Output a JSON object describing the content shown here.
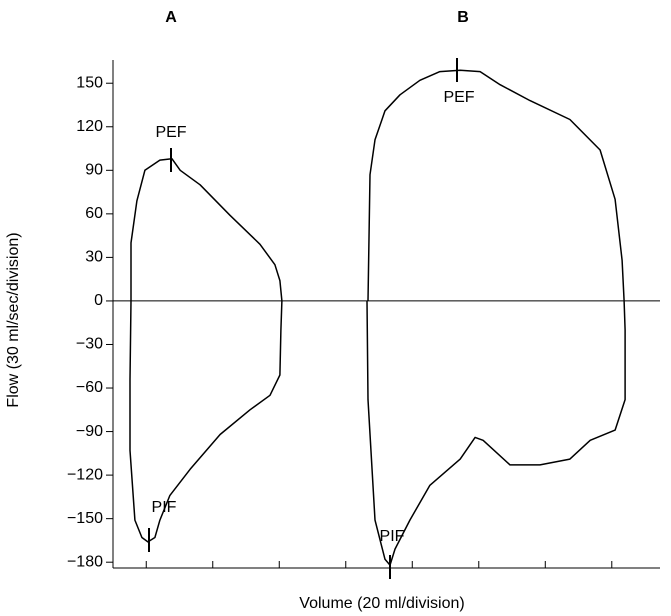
{
  "chart_data": {
    "type": "line",
    "xlabel": "Volume (20 ml/division)",
    "ylabel": "Flow (30 ml/sec/division)",
    "xlim": [
      10,
      174.5
    ],
    "xticks": [
      20,
      40,
      60,
      80,
      100,
      120,
      140,
      160
    ],
    "ylim": [
      -184,
      166
    ],
    "yticks": [
      150,
      120,
      90,
      60,
      30,
      0,
      {
        "value": -30,
        "label": "−30"
      },
      {
        "value": -60,
        "label": "−60"
      },
      {
        "value": -90,
        "label": "−90"
      },
      {
        "value": -120,
        "label": "−120"
      },
      {
        "value": -150,
        "label": "−150"
      },
      {
        "value": -180,
        "label": "−180"
      }
    ],
    "annotations": [
      "PEF",
      "PIF",
      "PEF",
      "PIF"
    ],
    "series": [
      {
        "name": "A",
        "color": "#000000",
        "x": [
          15.4,
          15.4,
          17.2,
          19.6,
          24.1,
          27.7,
          30.2,
          36.2,
          45.2,
          54.2,
          58.7,
          60.2,
          60.8,
          60.5,
          60.2,
          57.2,
          51.2,
          42.2,
          33.2,
          27.1,
          24.1,
          22.6,
          20.5,
          18.7,
          16.6,
          15.1,
          15.1,
          15.4
        ],
        "values": [
          0,
          40,
          69,
          90,
          97,
          98,
          90,
          80,
          59,
          39,
          25,
          14,
          0,
          -20,
          -51,
          -65,
          -75,
          -92,
          -116,
          -134,
          -151,
          -163,
          -166,
          -163,
          -151,
          -103,
          -54,
          0
        ]
      },
      {
        "name": "B",
        "color": "#000000",
        "x": [
          86.7,
          87.3,
          88.8,
          91.8,
          96.3,
          102.3,
          108.3,
          114.4,
          120.4,
          126.4,
          135.4,
          147.4,
          156.5,
          161,
          163.1,
          163.7,
          164,
          164,
          161,
          153.5,
          147.4,
          138.4,
          129.4,
          121.3,
          118.9,
          114.4,
          105.3,
          99.3,
          94.8,
          93.3,
          91.8,
          88.8,
          86.7,
          86.4
        ],
        "values": [
          0,
          87,
          111,
          131,
          142,
          152,
          158,
          159,
          158,
          149,
          138,
          125,
          104,
          70,
          28,
          0,
          -20,
          -68,
          -89,
          -96,
          -109,
          -113,
          -113,
          -96,
          -94,
          -109,
          -127,
          -151,
          -171,
          -182,
          -178,
          -151,
          -68,
          0
        ]
      }
    ]
  }
}
